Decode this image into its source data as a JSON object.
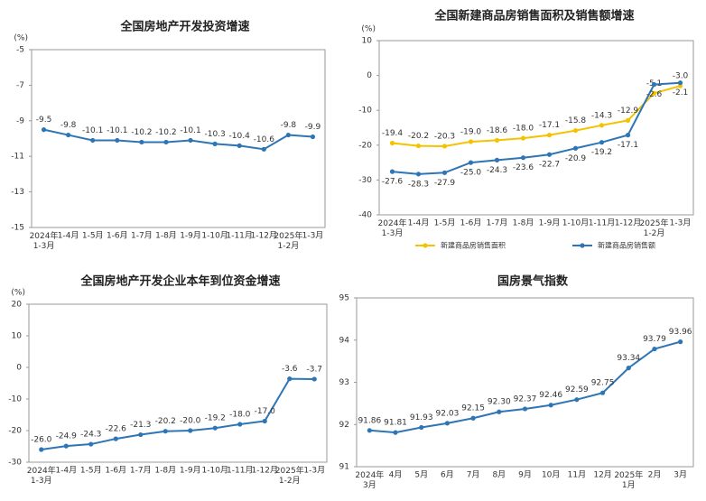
{
  "chart_data": [
    {
      "type": "line",
      "title": "全国房地产开发投资增速",
      "y_unit": "(%)",
      "categories": [
        "2024年\n1-3月",
        "1-4月",
        "1-5月",
        "1-6月",
        "1-7月",
        "1-8月",
        "1-9月",
        "1-10月",
        "1-11月",
        "1-12月",
        "2025年\n1-2月",
        "1-3月"
      ],
      "series": [
        {
          "color": "#2e75b6",
          "label_pos": "above",
          "values": [
            -9.5,
            -9.8,
            -10.1,
            -10.1,
            -10.2,
            -10.2,
            -10.1,
            -10.3,
            -10.4,
            -10.6,
            -9.8,
            -9.9
          ],
          "value_labels": [
            "-9.5",
            "-9.8",
            "-10.1",
            "-10.1",
            "-10.2",
            "-10.2",
            "-10.1",
            "-10.3",
            "-10.4",
            "-10.6",
            "-9.8",
            "-9.9"
          ]
        }
      ],
      "ylim": [
        -15,
        -5
      ],
      "yticks": [
        -5,
        -7,
        -9,
        -11,
        -13,
        -15
      ]
    },
    {
      "type": "line",
      "title": "全国新建商品房销售面积及销售额增速",
      "y_unit": "(%)",
      "categories": [
        "2024年\n1-3月",
        "1-4月",
        "1-5月",
        "1-6月",
        "1-7月",
        "1-8月",
        "1-9月",
        "1-10月",
        "1-11月",
        "1-12月",
        "2025年\n1-2月",
        "1-3月"
      ],
      "series": [
        {
          "name": "新建商品房销售面积",
          "color": "#f5c200",
          "label_pos": "above",
          "values": [
            -19.4,
            -20.2,
            -20.3,
            -19.0,
            -18.6,
            -18.0,
            -17.1,
            -15.8,
            -14.3,
            -12.9,
            -5.1,
            -3.0
          ],
          "value_labels": [
            "-19.4",
            "-20.2",
            "-20.3",
            "-19.0",
            "-18.6",
            "-18.0",
            "-17.1",
            "-15.8",
            "-14.3",
            "-12.9",
            "-5.1",
            "-3.0"
          ]
        },
        {
          "name": "新建商品房销售额",
          "color": "#2e75b6",
          "label_pos": "below",
          "values": [
            -27.6,
            -28.3,
            -27.9,
            -25.0,
            -24.3,
            -23.6,
            -22.7,
            -20.9,
            -19.2,
            -17.1,
            -2.6,
            -2.1
          ],
          "value_labels": [
            "-27.6",
            "-28.3",
            "-27.9",
            "-25.0",
            "-24.3",
            "-23.6",
            "-22.7",
            "-20.9",
            "-19.2",
            "-17.1",
            "-2.6",
            "-2.1"
          ]
        }
      ],
      "ylim": [
        -40,
        10
      ],
      "yticks": [
        10,
        0,
        -10,
        -20,
        -30,
        -40
      ],
      "legend": "bottom"
    },
    {
      "type": "line",
      "title": "全国房地产开发企业本年到位资金增速",
      "y_unit": "(%)",
      "categories": [
        "2024年\n1-3月",
        "1-4月",
        "1-5月",
        "1-6月",
        "1-7月",
        "1-8月",
        "1-9月",
        "1-10月",
        "1-11月",
        "1-12月",
        "2025年\n1-2月",
        "1-3月"
      ],
      "series": [
        {
          "color": "#2e75b6",
          "label_pos": "above",
          "values": [
            -26.0,
            -24.9,
            -24.3,
            -22.6,
            -21.3,
            -20.2,
            -20.0,
            -19.2,
            -18.0,
            -17.0,
            -3.6,
            -3.7
          ],
          "value_labels": [
            "-26.0",
            "-24.9",
            "-24.3",
            "-22.6",
            "-21.3",
            "-20.2",
            "-20.0",
            "-19.2",
            "-18.0",
            "-17.0",
            "-3.6",
            "-3.7"
          ]
        }
      ],
      "ylim": [
        -30,
        20
      ],
      "yticks": [
        20,
        10,
        0,
        -10,
        -20,
        -30
      ]
    },
    {
      "type": "line",
      "title": "国房景气指数",
      "categories": [
        "2024年\n3月",
        "4月",
        "5月",
        "6月",
        "7月",
        "8月",
        "9月",
        "10月",
        "11月",
        "12月",
        "2025年\n1月",
        "2月",
        "3月"
      ],
      "series": [
        {
          "color": "#2e75b6",
          "label_pos": "above",
          "values": [
            91.86,
            91.81,
            91.93,
            92.03,
            92.15,
            92.3,
            92.37,
            92.46,
            92.59,
            92.75,
            93.34,
            93.79,
            93.96
          ],
          "value_labels": [
            "91.86",
            "91.81",
            "91.93",
            "92.03",
            "92.15",
            "92.30",
            "92.37",
            "92.46",
            "92.59",
            "92.75",
            "93.34",
            "93.79",
            "93.96"
          ]
        }
      ],
      "ylim": [
        91,
        95
      ],
      "yticks": [
        95,
        94,
        93,
        92,
        91
      ]
    }
  ]
}
